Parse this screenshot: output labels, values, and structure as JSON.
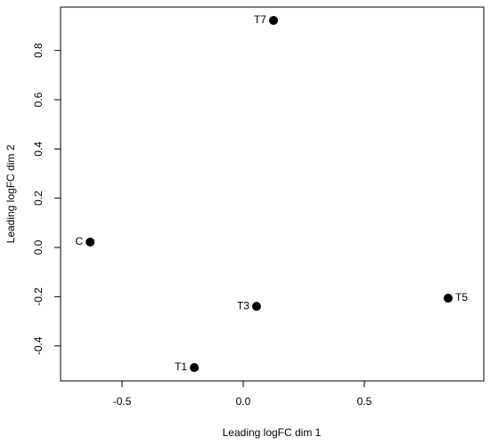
{
  "chart_data": {
    "type": "scatter",
    "x_label": "Leading logFC dim 1",
    "y_label": "Leading logFC dim 2",
    "x": [
      -0.632,
      -0.202,
      0.055,
      0.846,
      0.125
    ],
    "values": [
      0.022,
      -0.488,
      -0.239,
      -0.206,
      0.922
    ],
    "labels": [
      "C",
      "T1",
      "T3",
      "T5",
      "T7"
    ],
    "label_side": [
      "left",
      "left",
      "left",
      "right",
      "left"
    ],
    "color": "#000000",
    "xlim": [
      -0.754,
      0.993
    ],
    "ylim": [
      -0.542,
      0.976
    ],
    "xticks": [
      -0.5,
      {
        "value": 0,
        "label": "0.0"
      },
      0.5
    ],
    "yticks": [
      -0.4,
      -0.2,
      {
        "value": 0,
        "label": "0.0"
      },
      0.2,
      0.4,
      0.6,
      0.8
    ],
    "grid": false
  }
}
